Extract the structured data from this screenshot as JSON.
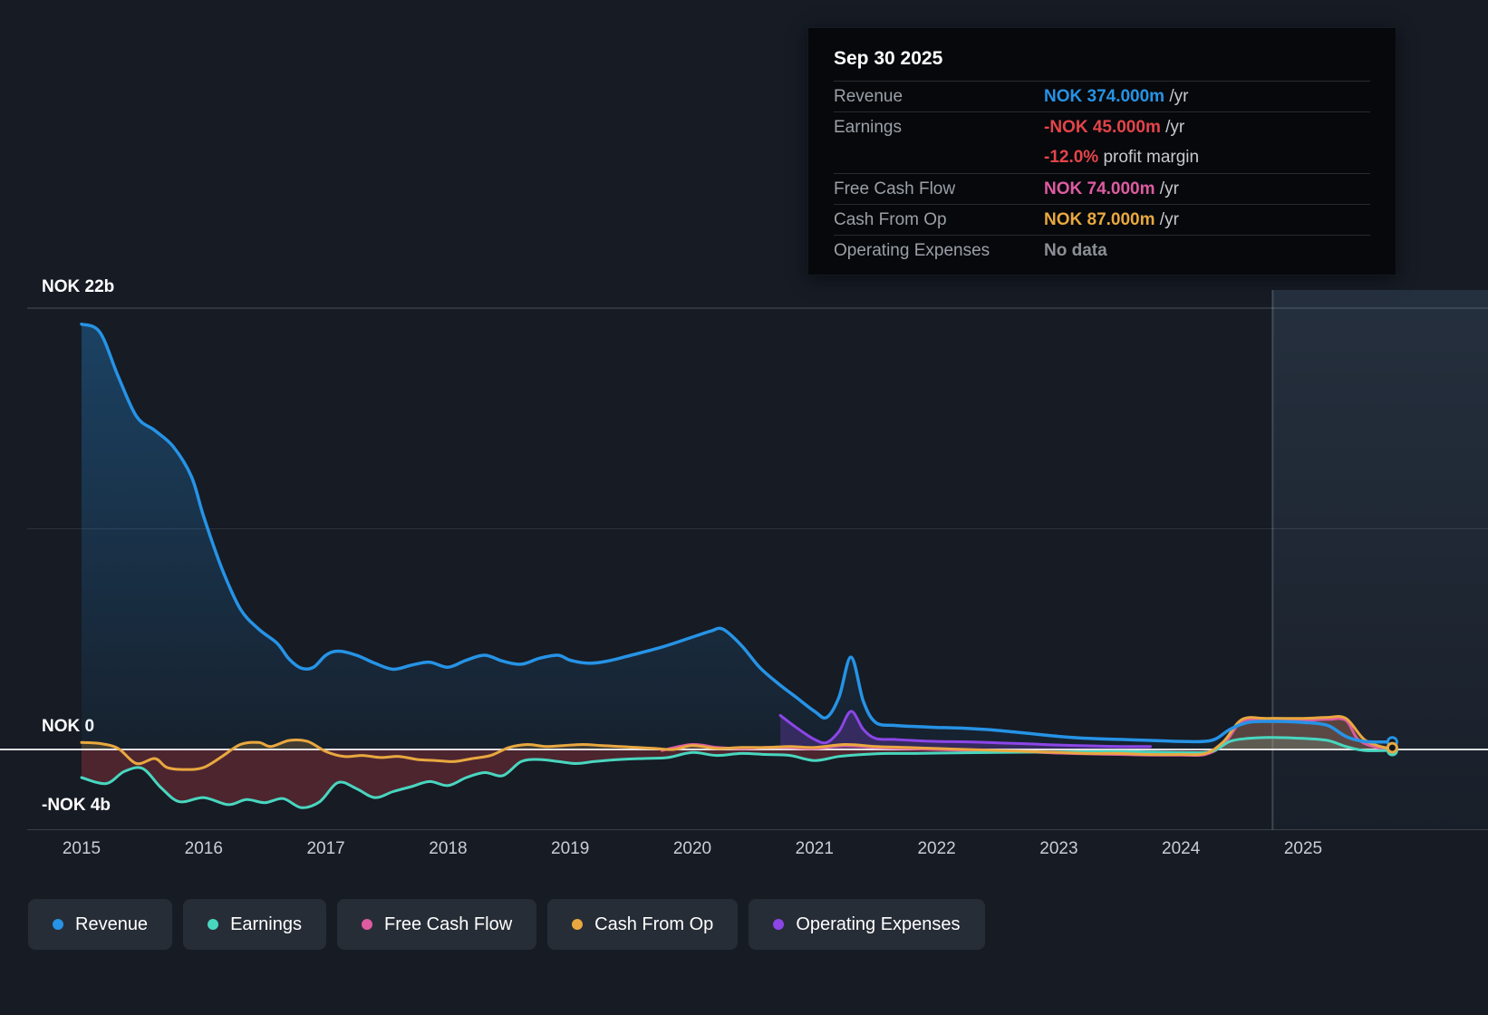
{
  "tooltip": {
    "date": "Sep 30 2025",
    "rows": [
      {
        "label": "Revenue",
        "value": "NOK 374.000m",
        "suffix": "/yr",
        "color": "#2693e6"
      },
      {
        "label": "Earnings",
        "value": "-NOK 45.000m",
        "suffix": "/yr",
        "color": "#e4444a"
      },
      {
        "label": "",
        "value": "-12.0%",
        "suffix": "profit margin",
        "color": "#e4444a"
      },
      {
        "label": "Free Cash Flow",
        "value": "NOK 74.000m",
        "suffix": "/yr",
        "color": "#de5ba2"
      },
      {
        "label": "Cash From Op",
        "value": "NOK 87.000m",
        "suffix": "/yr",
        "color": "#e9a83f"
      },
      {
        "label": "Operating Expenses",
        "value": "No data",
        "suffix": "",
        "color": "#8b9096"
      }
    ]
  },
  "axis": {
    "y_top": "NOK 22b",
    "y_zero": "NOK 0",
    "y_bottom": "-NOK 4b"
  },
  "legend": {
    "items": [
      {
        "label": "Revenue",
        "color": "#2693e6"
      },
      {
        "label": "Earnings",
        "color": "#49d6bf"
      },
      {
        "label": "Free Cash Flow",
        "color": "#de5ba2"
      },
      {
        "label": "Cash From Op",
        "color": "#e9a83f"
      },
      {
        "label": "Operating Expenses",
        "color": "#8c46e8"
      }
    ]
  },
  "chart_data": {
    "type": "line",
    "title": "Financial history: revenue, earnings and cash flow (NOK billions)",
    "unit": "NOK billions",
    "ylim": [
      -4,
      22
    ],
    "y_gridlines": [
      22,
      11,
      -4
    ],
    "x_ticks": [
      2015,
      2016,
      2017,
      2018,
      2019,
      2020,
      2021,
      2022,
      2023,
      2024,
      2025
    ],
    "forecast_divider_year": 2024.75,
    "series": [
      {
        "name": "Revenue",
        "color": "#2693e6",
        "values": [
          [
            2015.0,
            21.2
          ],
          [
            2015.15,
            20.8
          ],
          [
            2015.3,
            18.6
          ],
          [
            2015.45,
            16.6
          ],
          [
            2015.6,
            15.9
          ],
          [
            2015.75,
            15.1
          ],
          [
            2015.9,
            13.6
          ],
          [
            2016.0,
            11.6
          ],
          [
            2016.15,
            9.0
          ],
          [
            2016.3,
            7.0
          ],
          [
            2016.45,
            6.0
          ],
          [
            2016.6,
            5.3
          ],
          [
            2016.7,
            4.5
          ],
          [
            2016.8,
            4.05
          ],
          [
            2016.9,
            4.1
          ],
          [
            2017.0,
            4.7
          ],
          [
            2017.1,
            4.9
          ],
          [
            2017.25,
            4.7
          ],
          [
            2017.4,
            4.3
          ],
          [
            2017.55,
            4.0
          ],
          [
            2017.7,
            4.2
          ],
          [
            2017.85,
            4.35
          ],
          [
            2018.0,
            4.1
          ],
          [
            2018.15,
            4.45
          ],
          [
            2018.3,
            4.7
          ],
          [
            2018.45,
            4.4
          ],
          [
            2018.6,
            4.25
          ],
          [
            2018.75,
            4.55
          ],
          [
            2018.9,
            4.7
          ],
          [
            2019.0,
            4.45
          ],
          [
            2019.15,
            4.3
          ],
          [
            2019.3,
            4.4
          ],
          [
            2019.5,
            4.7
          ],
          [
            2019.75,
            5.1
          ],
          [
            2020.0,
            5.6
          ],
          [
            2020.15,
            5.9
          ],
          [
            2020.25,
            6.0
          ],
          [
            2020.4,
            5.2
          ],
          [
            2020.55,
            4.1
          ],
          [
            2020.7,
            3.3
          ],
          [
            2020.85,
            2.6
          ],
          [
            2021.0,
            1.9
          ],
          [
            2021.1,
            1.6
          ],
          [
            2021.2,
            2.6
          ],
          [
            2021.3,
            4.6
          ],
          [
            2021.4,
            2.4
          ],
          [
            2021.5,
            1.35
          ],
          [
            2021.65,
            1.2
          ],
          [
            2021.8,
            1.15
          ],
          [
            2022.0,
            1.1
          ],
          [
            2022.25,
            1.05
          ],
          [
            2022.5,
            0.95
          ],
          [
            2022.75,
            0.8
          ],
          [
            2023.0,
            0.65
          ],
          [
            2023.25,
            0.55
          ],
          [
            2023.5,
            0.5
          ],
          [
            2023.75,
            0.45
          ],
          [
            2024.0,
            0.4
          ],
          [
            2024.25,
            0.45
          ],
          [
            2024.4,
            1.0
          ],
          [
            2024.55,
            1.35
          ],
          [
            2024.75,
            1.4
          ],
          [
            2025.0,
            1.35
          ],
          [
            2025.2,
            1.2
          ],
          [
            2025.35,
            0.65
          ],
          [
            2025.5,
            0.4
          ],
          [
            2025.73,
            0.374
          ]
        ]
      },
      {
        "name": "Earnings",
        "color": "#49d6bf",
        "values": [
          [
            2015.0,
            -1.4
          ],
          [
            2015.2,
            -1.7
          ],
          [
            2015.35,
            -1.1
          ],
          [
            2015.5,
            -0.95
          ],
          [
            2015.65,
            -1.9
          ],
          [
            2015.8,
            -2.6
          ],
          [
            2016.0,
            -2.4
          ],
          [
            2016.2,
            -2.75
          ],
          [
            2016.35,
            -2.5
          ],
          [
            2016.5,
            -2.65
          ],
          [
            2016.65,
            -2.45
          ],
          [
            2016.8,
            -2.9
          ],
          [
            2016.95,
            -2.6
          ],
          [
            2017.1,
            -1.65
          ],
          [
            2017.25,
            -1.95
          ],
          [
            2017.4,
            -2.4
          ],
          [
            2017.55,
            -2.1
          ],
          [
            2017.7,
            -1.85
          ],
          [
            2017.85,
            -1.6
          ],
          [
            2018.0,
            -1.8
          ],
          [
            2018.15,
            -1.4
          ],
          [
            2018.3,
            -1.15
          ],
          [
            2018.45,
            -1.3
          ],
          [
            2018.6,
            -0.6
          ],
          [
            2018.75,
            -0.5
          ],
          [
            2018.9,
            -0.6
          ],
          [
            2019.05,
            -0.7
          ],
          [
            2019.2,
            -0.6
          ],
          [
            2019.4,
            -0.5
          ],
          [
            2019.6,
            -0.45
          ],
          [
            2019.8,
            -0.4
          ],
          [
            2020.0,
            -0.15
          ],
          [
            2020.2,
            -0.3
          ],
          [
            2020.4,
            -0.2
          ],
          [
            2020.6,
            -0.25
          ],
          [
            2020.8,
            -0.3
          ],
          [
            2021.0,
            -0.55
          ],
          [
            2021.2,
            -0.35
          ],
          [
            2021.4,
            -0.25
          ],
          [
            2021.6,
            -0.2
          ],
          [
            2021.8,
            -0.2
          ],
          [
            2022.0,
            -0.18
          ],
          [
            2022.5,
            -0.15
          ],
          [
            2023.0,
            -0.12
          ],
          [
            2023.5,
            -0.1
          ],
          [
            2024.0,
            -0.15
          ],
          [
            2024.25,
            -0.1
          ],
          [
            2024.4,
            0.4
          ],
          [
            2024.55,
            0.55
          ],
          [
            2024.75,
            0.6
          ],
          [
            2025.0,
            0.55
          ],
          [
            2025.2,
            0.45
          ],
          [
            2025.35,
            0.15
          ],
          [
            2025.5,
            -0.05
          ],
          [
            2025.73,
            -0.045
          ]
        ]
      },
      {
        "name": "Free Cash Flow",
        "color": "#de5ba2",
        "values": [
          [
            2019.75,
            -0.05
          ],
          [
            2020.0,
            0.25
          ],
          [
            2020.2,
            0.1
          ],
          [
            2020.4,
            0.05
          ],
          [
            2020.6,
            0.1
          ],
          [
            2020.8,
            0.1
          ],
          [
            2021.0,
            0.05
          ],
          [
            2021.25,
            0.2
          ],
          [
            2021.5,
            0.1
          ],
          [
            2021.75,
            0.05
          ],
          [
            2022.0,
            0.0
          ],
          [
            2022.25,
            -0.05
          ],
          [
            2022.5,
            -0.1
          ],
          [
            2022.75,
            -0.12
          ],
          [
            2023.0,
            -0.18
          ],
          [
            2023.25,
            -0.22
          ],
          [
            2023.5,
            -0.25
          ],
          [
            2023.75,
            -0.28
          ],
          [
            2024.0,
            -0.28
          ],
          [
            2024.2,
            -0.25
          ],
          [
            2024.35,
            0.25
          ],
          [
            2024.5,
            1.4
          ],
          [
            2024.7,
            1.45
          ],
          [
            2025.0,
            1.45
          ],
          [
            2025.2,
            1.5
          ],
          [
            2025.35,
            1.45
          ],
          [
            2025.45,
            0.5
          ],
          [
            2025.6,
            0.1
          ],
          [
            2025.73,
            0.074
          ]
        ]
      },
      {
        "name": "Cash From Op",
        "color": "#e9a83f",
        "values": [
          [
            2015.0,
            0.35
          ],
          [
            2015.15,
            0.3
          ],
          [
            2015.3,
            0.05
          ],
          [
            2015.45,
            -0.7
          ],
          [
            2015.6,
            -0.45
          ],
          [
            2015.7,
            -0.9
          ],
          [
            2015.85,
            -1.0
          ],
          [
            2016.0,
            -0.9
          ],
          [
            2016.15,
            -0.35
          ],
          [
            2016.3,
            0.25
          ],
          [
            2016.45,
            0.35
          ],
          [
            2016.55,
            0.15
          ],
          [
            2016.7,
            0.45
          ],
          [
            2016.85,
            0.4
          ],
          [
            2017.0,
            -0.1
          ],
          [
            2017.15,
            -0.35
          ],
          [
            2017.3,
            -0.3
          ],
          [
            2017.45,
            -0.4
          ],
          [
            2017.6,
            -0.35
          ],
          [
            2017.75,
            -0.5
          ],
          [
            2017.9,
            -0.55
          ],
          [
            2018.05,
            -0.6
          ],
          [
            2018.2,
            -0.45
          ],
          [
            2018.35,
            -0.3
          ],
          [
            2018.5,
            0.1
          ],
          [
            2018.65,
            0.25
          ],
          [
            2018.8,
            0.15
          ],
          [
            2018.95,
            0.2
          ],
          [
            2019.1,
            0.25
          ],
          [
            2019.25,
            0.2
          ],
          [
            2019.4,
            0.15
          ],
          [
            2019.55,
            0.1
          ],
          [
            2019.7,
            0.05
          ],
          [
            2019.85,
            0.0
          ],
          [
            2020.0,
            0.2
          ],
          [
            2020.2,
            0.05
          ],
          [
            2020.4,
            0.1
          ],
          [
            2020.6,
            0.1
          ],
          [
            2020.8,
            0.15
          ],
          [
            2021.0,
            0.1
          ],
          [
            2021.25,
            0.25
          ],
          [
            2021.5,
            0.15
          ],
          [
            2021.75,
            0.1
          ],
          [
            2022.0,
            0.05
          ],
          [
            2022.25,
            0.0
          ],
          [
            2022.5,
            -0.05
          ],
          [
            2022.75,
            -0.1
          ],
          [
            2023.0,
            -0.15
          ],
          [
            2023.25,
            -0.2
          ],
          [
            2023.5,
            -0.2
          ],
          [
            2023.75,
            -0.25
          ],
          [
            2024.0,
            -0.25
          ],
          [
            2024.2,
            -0.2
          ],
          [
            2024.35,
            0.4
          ],
          [
            2024.5,
            1.5
          ],
          [
            2024.7,
            1.55
          ],
          [
            2025.0,
            1.55
          ],
          [
            2025.2,
            1.6
          ],
          [
            2025.35,
            1.55
          ],
          [
            2025.5,
            0.5
          ],
          [
            2025.65,
            0.12
          ],
          [
            2025.73,
            0.087
          ]
        ]
      },
      {
        "name": "Operating Expenses",
        "color": "#8c46e8",
        "values": [
          [
            2020.72,
            1.7
          ],
          [
            2020.85,
            1.1
          ],
          [
            2021.0,
            0.5
          ],
          [
            2021.1,
            0.35
          ],
          [
            2021.2,
            0.9
          ],
          [
            2021.3,
            1.9
          ],
          [
            2021.4,
            1.0
          ],
          [
            2021.5,
            0.55
          ],
          [
            2021.65,
            0.5
          ],
          [
            2021.8,
            0.45
          ],
          [
            2022.0,
            0.4
          ],
          [
            2022.25,
            0.38
          ],
          [
            2022.5,
            0.33
          ],
          [
            2022.75,
            0.28
          ],
          [
            2023.0,
            0.22
          ],
          [
            2023.25,
            0.18
          ],
          [
            2023.5,
            0.15
          ],
          [
            2023.75,
            0.15
          ]
        ]
      }
    ]
  }
}
